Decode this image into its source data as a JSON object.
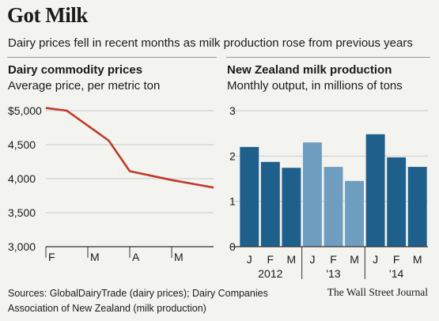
{
  "header": {
    "title": "Got Milk",
    "subtitle": "Dairy prices fell in recent months as milk production rose from previous years"
  },
  "colors": {
    "background": "#f3f3ef",
    "line": "#c0392b",
    "bar_dark": "#1f5f8b",
    "bar_light": "#6e9dbf",
    "grid": "#c9c9c9"
  },
  "left_panel": {
    "title": "Dairy commodity prices",
    "subtitle": "Average price, per metric ton"
  },
  "right_panel": {
    "title": "New Zealand milk production",
    "subtitle": "Monthly output, in millions of tons"
  },
  "footer": {
    "source_line1": "Sources: GlobalDairyTrade (dairy prices); Dairy Companies",
    "source_line2": "Association of New Zealand (milk production)",
    "credit": "The Wall Street Journal"
  },
  "chart_data": [
    {
      "type": "line",
      "title": "Dairy commodity prices",
      "subtitle": "Average price, per metric ton",
      "x": [
        0,
        0.5,
        1.5,
        2.0,
        3.0,
        4.0
      ],
      "x_ticks": [
        {
          "value": 0,
          "label": "F"
        },
        {
          "value": 1,
          "label": "M"
        },
        {
          "value": 2,
          "label": "A"
        },
        {
          "value": 3,
          "label": "M"
        }
      ],
      "xlim": [
        0,
        4
      ],
      "series": [
        {
          "values": [
            5040,
            5000,
            4560,
            4110,
            3980,
            3870
          ]
        }
      ],
      "ylim": [
        3000,
        5000
      ],
      "y_ticks": [
        {
          "value": 5000,
          "label": "$5,000"
        },
        {
          "value": 4500,
          "label": "4,500"
        },
        {
          "value": 4000,
          "label": "4,000"
        },
        {
          "value": 3500,
          "label": "3,500"
        },
        {
          "value": 3000,
          "label": "3,000"
        }
      ],
      "grid": true
    },
    {
      "type": "bar",
      "title": "New Zealand milk production",
      "subtitle": "Monthly output, in millions of tons",
      "categories": [
        "J",
        "F",
        "M",
        "J",
        "F",
        "M",
        "J",
        "F",
        "M"
      ],
      "groups": [
        {
          "label": "2012",
          "values": [
            2.2,
            1.87,
            1.74
          ],
          "color": "dark"
        },
        {
          "label": "'13",
          "values": [
            2.3,
            1.76,
            1.45
          ],
          "color": "light"
        },
        {
          "label": "'14",
          "values": [
            2.48,
            1.97,
            1.76
          ],
          "color": "dark"
        }
      ],
      "ylim": [
        0,
        3
      ],
      "y_ticks": [
        {
          "value": 3,
          "label": "3"
        },
        {
          "value": 2,
          "label": "2"
        },
        {
          "value": 1,
          "label": "1"
        },
        {
          "value": 0,
          "label": "0"
        }
      ],
      "grid": true
    }
  ]
}
